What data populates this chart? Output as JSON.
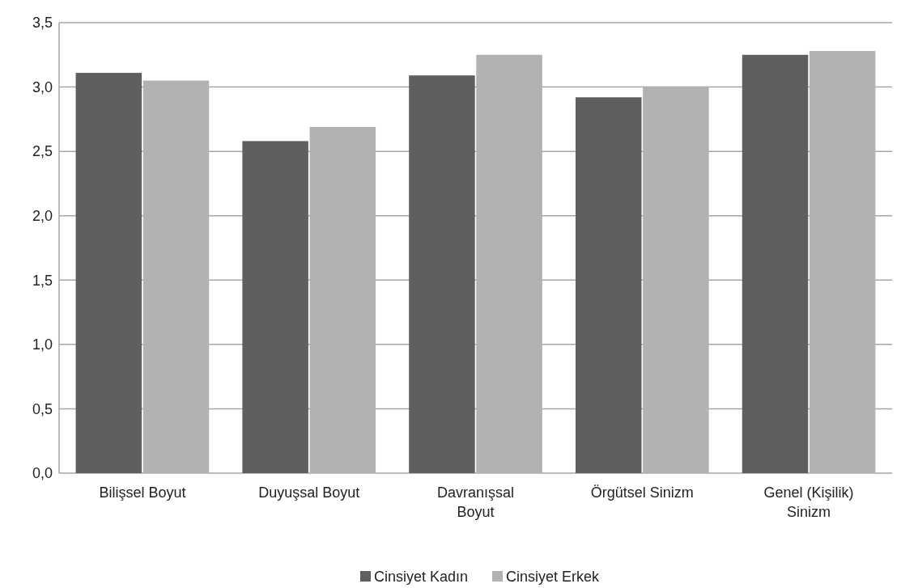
{
  "chart_data": {
    "type": "bar",
    "categories": [
      "Bilişsel Boyut",
      "Duyuşsal Boyut",
      "Davranışsal Boyut",
      "Örgütsel Sinizm",
      "Genel (Kişilik) Sinizm"
    ],
    "series": [
      {
        "name": "Cinsiyet Kadın",
        "color": "#5f5f5f",
        "values": [
          3.11,
          2.58,
          3.09,
          2.92,
          3.25
        ]
      },
      {
        "name": "Cinsiyet Erkek",
        "color": "#b2b2b2",
        "values": [
          3.05,
          2.69,
          3.25,
          3.0,
          3.28
        ]
      }
    ],
    "ylim": [
      0,
      3.5
    ],
    "yticks": [
      {
        "value": 0,
        "label": "0,0"
      },
      {
        "value": 0.5,
        "label": "0,5"
      },
      {
        "value": 1,
        "label": "1,0"
      },
      {
        "value": 1.5,
        "label": "1,5"
      },
      {
        "value": 2,
        "label": "2,0"
      },
      {
        "value": 2.5,
        "label": "2,5"
      },
      {
        "value": 3,
        "label": "3,0"
      },
      {
        "value": 3.5,
        "label": "3,5"
      }
    ],
    "grid": "y",
    "legend": "bottom"
  }
}
